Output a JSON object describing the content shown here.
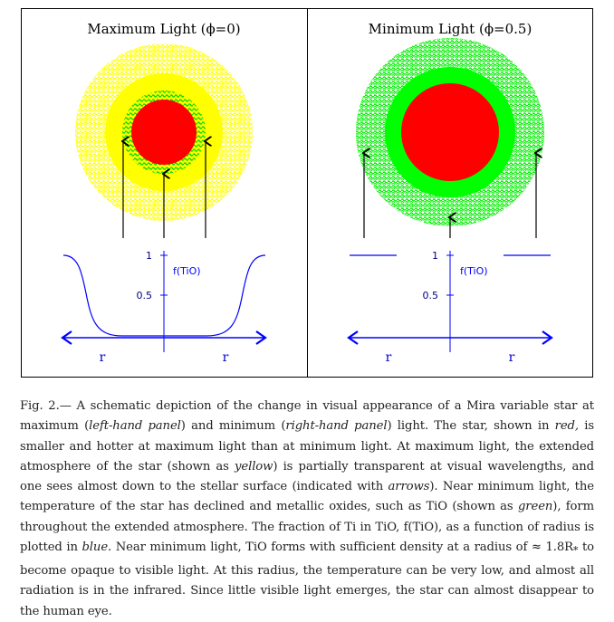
{
  "figure": {
    "left_panel": {
      "title": "Maximum Light (ϕ=0)",
      "ftio_label": "f(TiO)",
      "tick_1": "1",
      "tick_05": "0.5",
      "r_left": "r",
      "r_right": "r"
    },
    "right_panel": {
      "title": "Minimum Light (ϕ=0.5)",
      "ftio_label": "f(TiO)",
      "tick_1": "1",
      "tick_05": "0.5",
      "r_left": "r",
      "r_right": "r"
    },
    "colors": {
      "star": "#ff0000",
      "atmosphere": "#ffff00",
      "tio": "#00ff00",
      "curve": "#0000ff"
    }
  },
  "caption": {
    "p1": "Fig. 2.— A schematic depiction of the change in visual appearance of a Mira variable star at maximum (",
    "em1": "left-hand panel",
    "p2": ") and minimum (",
    "em2": "right-hand panel",
    "p3": ") light. The star, shown in ",
    "em3": "red,",
    "p4": " is smaller and hotter at maximum light than at minimum light. At maximum light, the extended atmosphere of the star (shown as ",
    "em4": "yellow",
    "p5": ") is partially transparent at visual wavelengths, and one sees almost down to the stellar surface (indicated with ",
    "em5": "arrows",
    "p6": "). Near minimum light, the temperature of the star has declined and metallic oxides, such as TiO (shown as ",
    "em6": "green",
    "p7": "), form throughout the extended atmosphere. The fraction of Ti in TiO, f(TiO), as a function of radius is plotted in ",
    "em7": "blue.",
    "p8": " Near minimum light, TiO forms with sufficient density at a radius of ≈ 1.8R",
    "sub": "*",
    "p9": " to become opaque to visible light. At this radius, the temperature can be very low, and almost all radiation is in the infrared. Since little visible light emerges, the star can almost disappear to the human eye."
  }
}
